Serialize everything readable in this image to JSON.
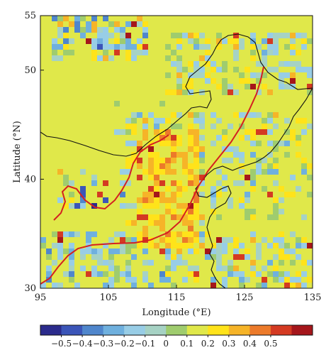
{
  "map": {
    "xlabel": "Longitude (°E)",
    "ylabel": "Latitude (°N)",
    "xlim": [
      95,
      135
    ],
    "ylim": [
      30,
      55
    ],
    "xticks": [
      "95",
      "105",
      "115",
      "125",
      "135"
    ],
    "yticks": [
      "30",
      "40",
      "50",
      "55"
    ],
    "background_value": 0.07
  },
  "colorbar": {
    "range": [
      -0.6,
      0.6
    ],
    "tick_labels": [
      "−0.5",
      "−0.4",
      "−0.3",
      "−0.2",
      "−0.1",
      "0",
      "0.1",
      "0.2",
      "0.3",
      "0.4",
      "0.5"
    ],
    "colors": [
      "#2b2b8c",
      "#3b55b8",
      "#4f86cc",
      "#6fb0de",
      "#98cde6",
      "#a6d2c4",
      "#9fcc6e",
      "#e0e84a",
      "#ffe31a",
      "#f6b428",
      "#ec7a2a",
      "#d43a22",
      "#a5161b"
    ]
  }
}
